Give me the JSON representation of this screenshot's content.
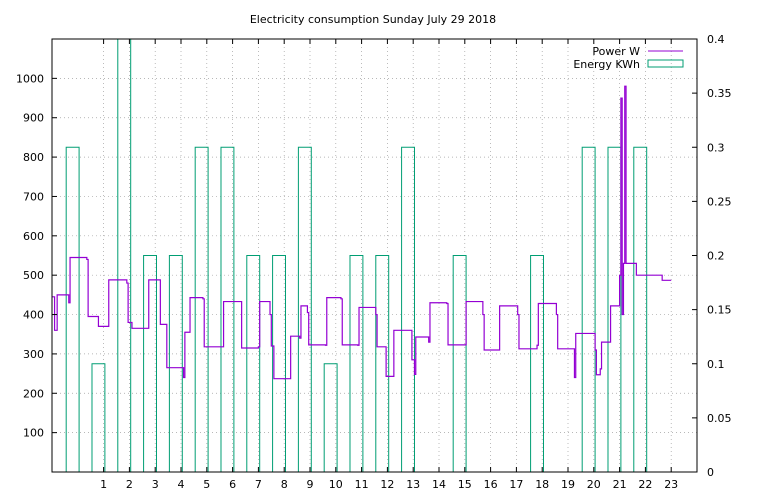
{
  "chart_data": {
    "type": "line",
    "title": "Electricity consumption Sunday July 29 2018",
    "xlabel": "",
    "ylabel": "",
    "xlim": [
      -1,
      24
    ],
    "ylim": [
      0,
      1100
    ],
    "y2lim": [
      0,
      0.4
    ],
    "x_ticks": [
      1,
      2,
      3,
      4,
      5,
      6,
      7,
      8,
      9,
      10,
      11,
      12,
      13,
      14,
      15,
      16,
      17,
      18,
      19,
      20,
      21,
      22,
      23
    ],
    "x_tick_labels": [
      "1",
      "2",
      "3",
      "4",
      "5",
      "6",
      "7",
      "8",
      "9",
      "10",
      "11",
      "12",
      "13",
      "14",
      "15",
      "16",
      "17",
      "18",
      "19",
      "20",
      "21",
      "22",
      "23"
    ],
    "y_ticks": [
      100,
      200,
      300,
      400,
      500,
      600,
      700,
      800,
      900,
      1000
    ],
    "y_tick_labels": [
      "100",
      "200",
      "300",
      "400",
      "500",
      "600",
      "700",
      "800",
      "900",
      "1000"
    ],
    "y2_ticks": [
      0,
      0.05,
      0.1,
      0.15,
      0.2,
      0.25,
      0.3,
      0.35,
      0.4
    ],
    "y2_tick_labels": [
      "0",
      "0.05",
      "0.1",
      "0.15",
      "0.2",
      "0.25",
      "0.3",
      "0.35",
      "0.4"
    ],
    "grid": true,
    "legend": "top-right",
    "legend_entries": [
      "Power W",
      "Energy KWh"
    ],
    "colors": {
      "power": "#9400d3",
      "energy": "#009e73",
      "grid": "#a0a0a0",
      "axis": "#000000"
    },
    "series": [
      {
        "name": "Energy KWh",
        "type": "bar",
        "axis": "y2",
        "x": [
          0,
          1,
          2,
          3,
          4,
          5,
          6,
          7,
          8,
          9,
          10,
          11,
          12,
          13,
          14,
          15,
          16,
          17,
          18,
          19,
          20,
          21,
          22,
          23
        ],
        "values": [
          0.3,
          0.1,
          0.4,
          0.2,
          0.2,
          0.3,
          0.3,
          0.2,
          0.2,
          0.3,
          0.1,
          0.2,
          0.2,
          0.3,
          0,
          0.2,
          0,
          0,
          0.2,
          0,
          0.3,
          0.3,
          0.3,
          0
        ]
      },
      {
        "name": "Power W",
        "type": "step",
        "axis": "y",
        "points": [
          [
            -1.0,
            445
          ],
          [
            -0.9,
            360
          ],
          [
            -0.8,
            450
          ],
          [
            -0.35,
            430
          ],
          [
            -0.3,
            545
          ],
          [
            0.35,
            540
          ],
          [
            0.4,
            395
          ],
          [
            0.8,
            370
          ],
          [
            1.2,
            488
          ],
          [
            1.9,
            480
          ],
          [
            1.95,
            380
          ],
          [
            2.1,
            365
          ],
          [
            2.7,
            365
          ],
          [
            2.75,
            488
          ],
          [
            3.2,
            375
          ],
          [
            3.45,
            265
          ],
          [
            4.0,
            265
          ],
          [
            4.1,
            240
          ],
          [
            4.15,
            355
          ],
          [
            4.35,
            443
          ],
          [
            4.85,
            440
          ],
          [
            4.9,
            318
          ],
          [
            5.6,
            318
          ],
          [
            5.65,
            433
          ],
          [
            6.3,
            433
          ],
          [
            6.35,
            315
          ],
          [
            7.0,
            318
          ],
          [
            7.05,
            433
          ],
          [
            7.45,
            400
          ],
          [
            7.5,
            320
          ],
          [
            7.6,
            237
          ],
          [
            8.2,
            237
          ],
          [
            8.25,
            345
          ],
          [
            8.6,
            340
          ],
          [
            8.65,
            422
          ],
          [
            8.9,
            405
          ],
          [
            8.95,
            323
          ],
          [
            9.6,
            322
          ],
          [
            9.65,
            443
          ],
          [
            10.2,
            440
          ],
          [
            10.25,
            323
          ],
          [
            10.85,
            322
          ],
          [
            10.9,
            418
          ],
          [
            11.45,
            418
          ],
          [
            11.55,
            400
          ],
          [
            11.6,
            318
          ],
          [
            11.9,
            318
          ],
          [
            11.95,
            243
          ],
          [
            12.2,
            243
          ],
          [
            12.25,
            360
          ],
          [
            12.9,
            360
          ],
          [
            12.95,
            285
          ],
          [
            13.05,
            248
          ],
          [
            13.1,
            343
          ],
          [
            13.55,
            343
          ],
          [
            13.6,
            330
          ],
          [
            13.65,
            430
          ],
          [
            14.3,
            428
          ],
          [
            14.35,
            323
          ],
          [
            15.0,
            323
          ],
          [
            15.05,
            433
          ],
          [
            15.65,
            433
          ],
          [
            15.7,
            400
          ],
          [
            15.75,
            310
          ],
          [
            16.3,
            310
          ],
          [
            16.35,
            422
          ],
          [
            17.0,
            422
          ],
          [
            17.05,
            400
          ],
          [
            17.1,
            313
          ],
          [
            17.75,
            313
          ],
          [
            17.8,
            322
          ],
          [
            17.85,
            428
          ],
          [
            18.5,
            428
          ],
          [
            18.55,
            400
          ],
          [
            18.6,
            313
          ],
          [
            19.2,
            313
          ],
          [
            19.25,
            240
          ],
          [
            19.3,
            352
          ],
          [
            20.0,
            352
          ],
          [
            20.05,
            310
          ],
          [
            20.1,
            247
          ],
          [
            20.25,
            262
          ],
          [
            20.3,
            330
          ],
          [
            20.6,
            330
          ],
          [
            20.65,
            422
          ],
          [
            20.95,
            422
          ],
          [
            21.0,
            500
          ],
          [
            21.05,
            950
          ],
          [
            21.1,
            400
          ],
          [
            21.15,
            530
          ],
          [
            21.2,
            980
          ],
          [
            21.25,
            530
          ],
          [
            21.65,
            500
          ],
          [
            22.6,
            500
          ],
          [
            22.65,
            487
          ],
          [
            23.0,
            487
          ]
        ]
      }
    ]
  }
}
